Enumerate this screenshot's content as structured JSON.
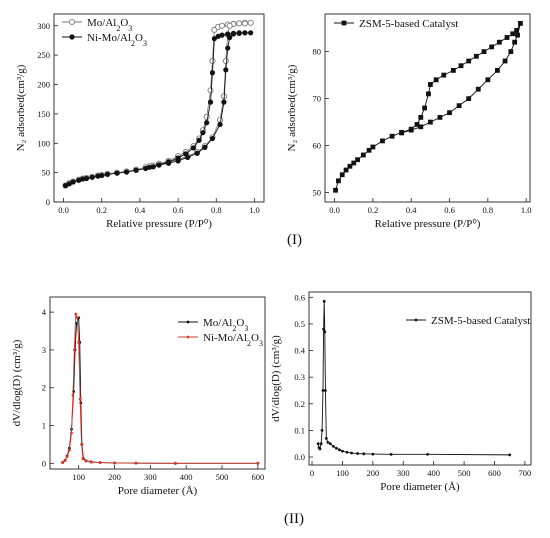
{
  "panel_labels": [
    "(I)",
    "(II)"
  ],
  "chart_data": [
    {
      "type": "line",
      "panel": "I",
      "xlabel": "Relative pressure (P/P⁰)",
      "ylabel": "N₂ adsorbed(cm³/g)",
      "xlim": [
        -0.05,
        1.05
      ],
      "ylim": [
        0,
        320
      ],
      "xticks": [
        0.0,
        0.2,
        0.4,
        0.6,
        0.8,
        1.0
      ],
      "xtick_labels": [
        "0.0",
        "0.2",
        "0.4",
        "0.6",
        "0.8",
        "1.0"
      ],
      "yticks": [
        0,
        50,
        100,
        150,
        200,
        250,
        300
      ],
      "ytick_labels": [
        "0",
        "50",
        "100",
        "150",
        "200",
        "250",
        "300"
      ],
      "legend_position": "top-left",
      "series": [
        {
          "name": "Mo/Al₂O₃",
          "marker": "open-circle",
          "color": "#7a7a7a",
          "points": [
            [
              0.01,
              28
            ],
            [
              0.03,
              32
            ],
            [
              0.05,
              35
            ],
            [
              0.08,
              38
            ],
            [
              0.1,
              40
            ],
            [
              0.12,
              41
            ],
            [
              0.15,
              43
            ],
            [
              0.18,
              45
            ],
            [
              0.2,
              46
            ],
            [
              0.23,
              48
            ],
            [
              0.28,
              50
            ],
            [
              0.33,
              52
            ],
            [
              0.38,
              55
            ],
            [
              0.43,
              59
            ],
            [
              0.47,
              62
            ],
            [
              0.5,
              65
            ],
            [
              0.55,
              70
            ],
            [
              0.6,
              78
            ],
            [
              0.64,
              85
            ],
            [
              0.68,
              95
            ],
            [
              0.71,
              108
            ],
            [
              0.73,
              122
            ],
            [
              0.75,
              145
            ],
            [
              0.77,
              190
            ],
            [
              0.78,
              240
            ],
            [
              0.79,
              293
            ],
            [
              0.81,
              298
            ],
            [
              0.83,
              300
            ],
            [
              0.86,
              302
            ],
            [
              0.89,
              303
            ],
            [
              0.92,
              304
            ],
            [
              0.95,
              305
            ],
            [
              0.98,
              305
            ],
            [
              0.95,
              304
            ],
            [
              0.92,
              304
            ],
            [
              0.89,
              303
            ],
            [
              0.87,
              300
            ],
            [
              0.86,
              285
            ],
            [
              0.85,
              240
            ],
            [
              0.84,
              180
            ],
            [
              0.82,
              140
            ],
            [
              0.78,
              110
            ],
            [
              0.74,
              95
            ],
            [
              0.7,
              85
            ],
            [
              0.65,
              78
            ],
            [
              0.6,
              72
            ],
            [
              0.55,
              68
            ],
            [
              0.5,
              65
            ],
            [
              0.45,
              61
            ]
          ]
        },
        {
          "name": "Ni-Mo/Al₂O₃",
          "marker": "filled-circle",
          "color": "#111111",
          "points": [
            [
              0.01,
              28
            ],
            [
              0.03,
              31
            ],
            [
              0.05,
              34
            ],
            [
              0.08,
              37
            ],
            [
              0.1,
              39
            ],
            [
              0.12,
              40
            ],
            [
              0.15,
              42
            ],
            [
              0.18,
              44
            ],
            [
              0.2,
              45
            ],
            [
              0.23,
              47
            ],
            [
              0.28,
              49
            ],
            [
              0.33,
              51
            ],
            [
              0.38,
              54
            ],
            [
              0.43,
              57
            ],
            [
              0.47,
              60
            ],
            [
              0.5,
              63
            ],
            [
              0.55,
              68
            ],
            [
              0.6,
              75
            ],
            [
              0.64,
              82
            ],
            [
              0.68,
              92
            ],
            [
              0.71,
              105
            ],
            [
              0.73,
              118
            ],
            [
              0.75,
              135
            ],
            [
              0.77,
              170
            ],
            [
              0.78,
              220
            ],
            [
              0.79,
              278
            ],
            [
              0.81,
              282
            ],
            [
              0.83,
              284
            ],
            [
              0.86,
              286
            ],
            [
              0.89,
              287
            ],
            [
              0.92,
              288
            ],
            [
              0.95,
              288
            ],
            [
              0.98,
              288
            ],
            [
              0.95,
              288
            ],
            [
              0.92,
              287
            ],
            [
              0.89,
              286
            ],
            [
              0.87,
              280
            ],
            [
              0.86,
              262
            ],
            [
              0.85,
              225
            ],
            [
              0.84,
              170
            ],
            [
              0.82,
              132
            ],
            [
              0.78,
              108
            ],
            [
              0.74,
              93
            ],
            [
              0.7,
              83
            ],
            [
              0.65,
              76
            ],
            [
              0.6,
              70
            ],
            [
              0.55,
              66
            ],
            [
              0.5,
              63
            ],
            [
              0.45,
              59
            ]
          ]
        }
      ]
    },
    {
      "type": "line",
      "panel": "I",
      "xlabel": "Relative pressure (P/P⁰)",
      "ylabel": "N₂ adsorbed(cm³/g)",
      "xlim": [
        -0.05,
        1.02
      ],
      "ylim": [
        48,
        88
      ],
      "xticks": [
        0.0,
        0.2,
        0.4,
        0.6,
        0.8,
        1.0
      ],
      "xtick_labels": [
        "0.0",
        "0.2",
        "0.4",
        "0.6",
        "0.8",
        "1.0"
      ],
      "yticks": [
        50,
        60,
        70,
        80
      ],
      "ytick_labels": [
        "50",
        "60",
        "70",
        "80"
      ],
      "legend_position": "top-left",
      "series": [
        {
          "name": "ZSM-5-based Catalyst",
          "marker": "filled-square",
          "color": "#111111",
          "points": [
            [
              0.005,
              50.5
            ],
            [
              0.02,
              52.5
            ],
            [
              0.04,
              53.8
            ],
            [
              0.06,
              54.8
            ],
            [
              0.08,
              55.6
            ],
            [
              0.1,
              56.3
            ],
            [
              0.12,
              57.0
            ],
            [
              0.15,
              58.0
            ],
            [
              0.18,
              59.0
            ],
            [
              0.2,
              59.7
            ],
            [
              0.25,
              61.0
            ],
            [
              0.3,
              62.0
            ],
            [
              0.35,
              62.8
            ],
            [
              0.4,
              63.5
            ],
            [
              0.43,
              64.5
            ],
            [
              0.45,
              66.0
            ],
            [
              0.47,
              68.0
            ],
            [
              0.49,
              71.0
            ],
            [
              0.5,
              73.0
            ],
            [
              0.53,
              74.0
            ],
            [
              0.57,
              75.0
            ],
            [
              0.62,
              76.0
            ],
            [
              0.66,
              77.0
            ],
            [
              0.7,
              78.0
            ],
            [
              0.74,
              79.0
            ],
            [
              0.78,
              80.0
            ],
            [
              0.82,
              81.0
            ],
            [
              0.86,
              82.0
            ],
            [
              0.9,
              83.0
            ],
            [
              0.93,
              83.8
            ],
            [
              0.95,
              84.5
            ],
            [
              0.97,
              86.0
            ],
            [
              0.955,
              83.5
            ],
            [
              0.94,
              82.0
            ],
            [
              0.92,
              80.0
            ],
            [
              0.89,
              78.0
            ],
            [
              0.85,
              76.0
            ],
            [
              0.8,
              74.0
            ],
            [
              0.75,
              72.0
            ],
            [
              0.7,
              70.0
            ],
            [
              0.65,
              68.5
            ],
            [
              0.6,
              67.0
            ],
            [
              0.55,
              66.0
            ],
            [
              0.5,
              65.0
            ],
            [
              0.45,
              64.0
            ],
            [
              0.4,
              63.3
            ],
            [
              0.35,
              62.7
            ]
          ]
        }
      ]
    },
    {
      "type": "line",
      "panel": "II",
      "xlabel": "Pore diameter (Å)",
      "ylabel": "dV/dlog(D) (cm³/g)",
      "xlim": [
        20,
        620
      ],
      "ylim": [
        -0.15,
        4.4
      ],
      "xticks": [
        100,
        200,
        300,
        400,
        500,
        600
      ],
      "xtick_labels": [
        "100",
        "200",
        "300",
        "400",
        "500",
        "600"
      ],
      "yticks": [
        0,
        1,
        2,
        3,
        4
      ],
      "ytick_labels": [
        "0",
        "1",
        "2",
        "3",
        "4"
      ],
      "legend_position": "top-right",
      "series": [
        {
          "name": "Mo/Al₂O₃",
          "marker": "filled-dot",
          "color": "#111111",
          "points": [
            [
              55,
              0.02
            ],
            [
              62,
              0.08
            ],
            [
              68,
              0.2
            ],
            [
              74,
              0.4
            ],
            [
              80,
              0.9
            ],
            [
              86,
              1.9
            ],
            [
              90,
              3.0
            ],
            [
              94,
              3.7
            ],
            [
              100,
              3.85
            ],
            [
              103,
              3.2
            ],
            [
              106,
              1.6
            ],
            [
              109,
              0.5
            ],
            [
              113,
              0.13
            ],
            [
              120,
              0.07
            ],
            [
              135,
              0.04
            ],
            [
              160,
              0.02
            ],
            [
              200,
              0.01
            ],
            [
              260,
              0.005
            ],
            [
              370,
              0.0
            ],
            [
              600,
              0.0
            ]
          ]
        },
        {
          "name": "Ni-Mo/Al₂O₃",
          "marker": "filled-dot",
          "color": "#d43a2f",
          "points": [
            [
              55,
              0.02
            ],
            [
              62,
              0.07
            ],
            [
              68,
              0.18
            ],
            [
              74,
              0.35
            ],
            [
              80,
              0.8
            ],
            [
              84,
              1.8
            ],
            [
              88,
              3.0
            ],
            [
              92,
              3.95
            ],
            [
              96,
              3.85
            ],
            [
              100,
              3.2
            ],
            [
              104,
              1.7
            ],
            [
              108,
              0.5
            ],
            [
              112,
              0.12
            ],
            [
              120,
              0.06
            ],
            [
              135,
              0.03
            ],
            [
              160,
              0.02
            ],
            [
              200,
              0.01
            ],
            [
              260,
              0.005
            ],
            [
              370,
              0.0
            ],
            [
              600,
              0.0
            ]
          ]
        }
      ]
    },
    {
      "type": "line",
      "panel": "II",
      "xlabel": "Pore diameter (Å)",
      "ylabel": "dV/dlog(D) (cm³/g)",
      "xlim": [
        -10,
        720
      ],
      "ylim": [
        -0.03,
        0.62
      ],
      "xticks": [
        0,
        100,
        200,
        300,
        400,
        500,
        600,
        700
      ],
      "xtick_labels": [
        "0",
        "100",
        "200",
        "300",
        "400",
        "500",
        "600",
        "700"
      ],
      "yticks": [
        0.0,
        0.1,
        0.2,
        0.3,
        0.4,
        0.5,
        0.6
      ],
      "ytick_labels": [
        "0.0",
        "0.1",
        "0.2",
        "0.3",
        "0.4",
        "0.5",
        "0.6"
      ],
      "legend_position": "top-right",
      "series": [
        {
          "name": "ZSM-5-based Catalyst",
          "marker": "filled-dot",
          "color": "#111111",
          "points": [
            [
              20,
              0.05
            ],
            [
              23,
              0.035
            ],
            [
              26,
              0.03
            ],
            [
              30,
              0.05
            ],
            [
              33,
              0.1
            ],
            [
              36,
              0.25
            ],
            [
              38,
              0.48
            ],
            [
              40,
              0.585
            ],
            [
              42,
              0.47
            ],
            [
              44,
              0.25
            ],
            [
              47,
              0.07
            ],
            [
              52,
              0.055
            ],
            [
              60,
              0.05
            ],
            [
              70,
              0.04
            ],
            [
              80,
              0.033
            ],
            [
              90,
              0.027
            ],
            [
              100,
              0.022
            ],
            [
              115,
              0.018
            ],
            [
              130,
              0.015
            ],
            [
              150,
              0.013
            ],
            [
              170,
              0.012
            ],
            [
              200,
              0.011
            ],
            [
              260,
              0.01
            ],
            [
              380,
              0.01
            ],
            [
              650,
              0.008
            ]
          ]
        }
      ]
    }
  ]
}
